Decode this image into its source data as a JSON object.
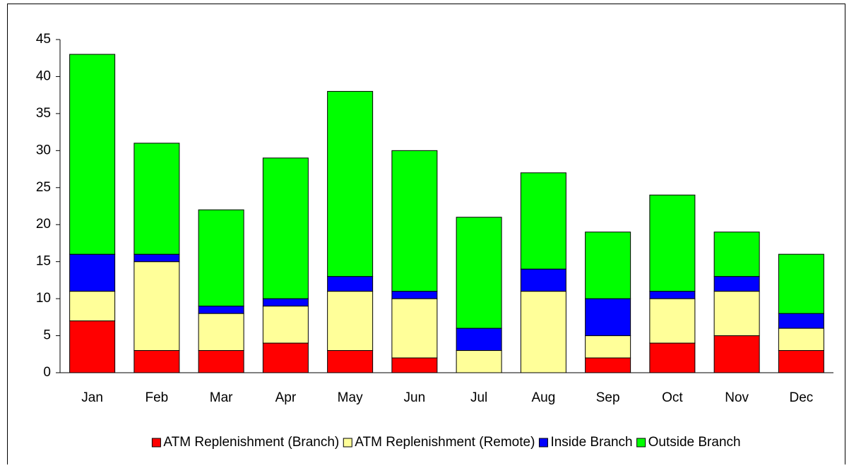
{
  "chart_data": {
    "type": "stacked_bar",
    "categories": [
      "Jan",
      "Feb",
      "Mar",
      "Apr",
      "May",
      "Jun",
      "Jul",
      "Aug",
      "Sep",
      "Oct",
      "Nov",
      "Dec"
    ],
    "series": [
      {
        "name": "ATM Replenishment (Branch)",
        "color": "#ff0000",
        "values": [
          7,
          3,
          3,
          4,
          3,
          2,
          0,
          0,
          2,
          4,
          5,
          3
        ]
      },
      {
        "name": "ATM Replenishment (Remote)",
        "color": "#ffff99",
        "values": [
          4,
          12,
          5,
          5,
          8,
          8,
          3,
          11,
          3,
          6,
          6,
          3
        ]
      },
      {
        "name": "Inside Branch",
        "color": "#0000ff",
        "values": [
          5,
          1,
          1,
          1,
          2,
          1,
          3,
          3,
          5,
          1,
          2,
          2
        ]
      },
      {
        "name": "Outside Branch",
        "color": "#00ff00",
        "values": [
          27,
          15,
          13,
          19,
          25,
          19,
          15,
          13,
          9,
          13,
          6,
          8
        ]
      }
    ],
    "ylim": [
      0,
      45
    ],
    "yticks": [
      0,
      5,
      10,
      15,
      20,
      25,
      30,
      35,
      40,
      45
    ],
    "grid": false,
    "legend": "bottom"
  }
}
